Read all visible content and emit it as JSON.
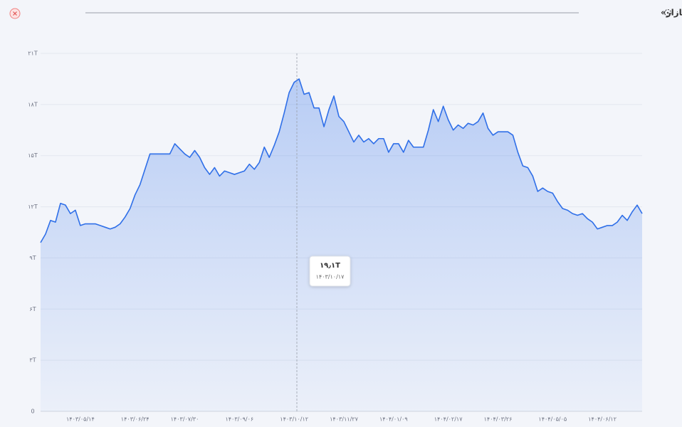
{
  "chart_data": {
    "type": "area",
    "title": "تاریخچه «ارزش بازار»",
    "color": "#2f6fe8",
    "grid": true,
    "ylim": [
      0,
      21
    ],
    "yticks": [
      0,
      {
        "value": 3,
        "label": "۳T"
      },
      {
        "value": 6,
        "label": "۶T"
      },
      {
        "value": 9,
        "label": "۹T"
      },
      {
        "value": 12,
        "label": "۱۲T"
      },
      {
        "value": 15,
        "label": "۱۵T"
      },
      {
        "value": 18,
        "label": "۱۸T"
      },
      {
        "value": 21,
        "label": "۲۱T"
      }
    ],
    "categories": [
      null,
      null,
      null,
      null,
      null,
      null,
      null,
      null,
      "۱۴۰۳/۰۵/۱۴",
      null,
      null,
      null,
      null,
      null,
      null,
      null,
      null,
      null,
      null,
      "۱۴۰۳/۰۶/۲۴",
      null,
      null,
      null,
      null,
      null,
      null,
      null,
      null,
      null,
      "۱۴۰۳/۰۷/۳۰",
      null,
      null,
      null,
      null,
      null,
      null,
      null,
      null,
      null,
      null,
      "۱۴۰۳/۰۹/۰۶",
      null,
      null,
      null,
      null,
      null,
      null,
      null,
      null,
      null,
      null,
      "۱۴۰۳/۱۰/۱۲",
      null,
      null,
      null,
      null,
      null,
      null,
      null,
      null,
      null,
      "۱۴۰۳/۱۱/۲۷",
      null,
      null,
      null,
      null,
      null,
      null,
      null,
      null,
      null,
      "۱۴۰۴/۰۱/۰۹",
      null,
      null,
      null,
      null,
      null,
      null,
      null,
      null,
      null,
      null,
      "۱۴۰۴/۰۲/۱۷",
      null,
      null,
      null,
      null,
      null,
      null,
      null,
      null,
      null,
      "۱۴۰۴/۰۳/۲۶",
      null,
      null,
      null,
      null,
      null,
      null,
      null,
      null,
      null,
      null,
      "۱۴۰۴/۰۵/۰۵",
      null,
      null,
      null,
      null,
      null,
      null,
      null,
      null,
      null,
      "۱۴۰۴/۰۶/۱۲",
      null,
      null,
      null,
      null,
      null,
      null,
      null,
      null
    ],
    "values": [
      9.9,
      10.4,
      11.2,
      11.1,
      12.2,
      12.1,
      11.6,
      11.8,
      10.9,
      11.0,
      11.0,
      11.0,
      10.9,
      10.8,
      10.7,
      10.8,
      11.0,
      11.4,
      11.9,
      12.7,
      13.3,
      14.2,
      15.1,
      15.1,
      15.1,
      15.1,
      15.1,
      15.7,
      15.4,
      15.1,
      14.9,
      15.3,
      14.9,
      14.3,
      13.9,
      14.3,
      13.8,
      14.1,
      14.0,
      13.9,
      14.0,
      14.1,
      14.5,
      14.2,
      14.6,
      15.5,
      14.9,
      15.6,
      16.4,
      17.5,
      18.7,
      19.3,
      19.5,
      18.6,
      18.7,
      17.8,
      17.8,
      16.7,
      17.7,
      18.5,
      17.3,
      17.0,
      16.4,
      15.8,
      16.2,
      15.8,
      16.0,
      15.7,
      16.0,
      16.0,
      15.2,
      15.7,
      15.7,
      15.2,
      15.9,
      15.5,
      15.5,
      15.5,
      16.5,
      17.7,
      17.0,
      17.9,
      17.1,
      16.5,
      16.8,
      16.6,
      16.9,
      16.8,
      17.0,
      17.5,
      16.6,
      16.2,
      16.4,
      16.4,
      16.4,
      16.2,
      15.2,
      14.4,
      14.3,
      13.8,
      12.9,
      13.1,
      12.9,
      12.8,
      12.3,
      11.9,
      11.8,
      11.6,
      11.5,
      11.6,
      11.3,
      11.1,
      10.7,
      10.8,
      10.9,
      10.9,
      11.1,
      11.5,
      11.2,
      11.7,
      12.1,
      11.6
    ],
    "tooltip": {
      "value": "۱۹٫۱T",
      "date": "۱۴۰۳/۱۰/۱۷"
    }
  }
}
